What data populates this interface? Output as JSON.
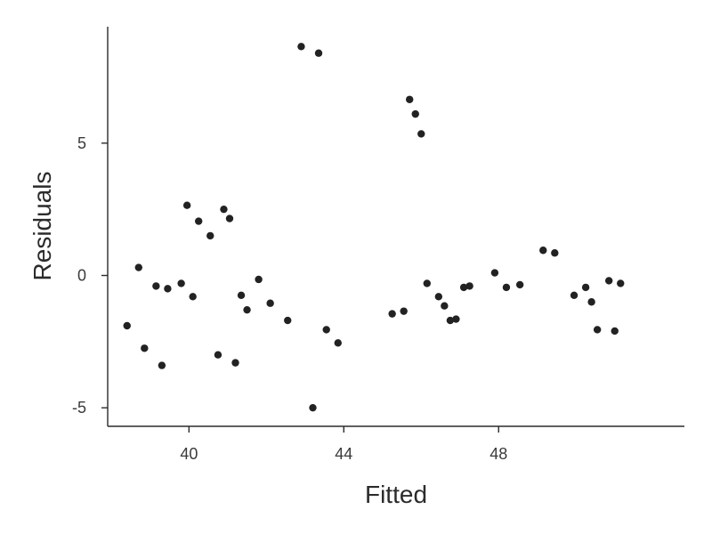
{
  "chart_data": {
    "type": "scatter",
    "title": "",
    "xlabel": "Fitted",
    "ylabel": "Residuals",
    "xlim": [
      37.9,
      52.8
    ],
    "ylim": [
      -5.7,
      9.4
    ],
    "x_ticks": [
      40,
      44,
      48
    ],
    "y_ticks": [
      5,
      0,
      -5
    ],
    "x_tick_labels": [
      "40",
      "44",
      "48"
    ],
    "y_tick_labels": [
      "5",
      "0",
      "-5"
    ],
    "grid": false,
    "legend": "none",
    "point_color": "#222222",
    "points": [
      {
        "x": 38.4,
        "y": -1.9
      },
      {
        "x": 38.7,
        "y": 0.3
      },
      {
        "x": 38.85,
        "y": -2.75
      },
      {
        "x": 39.15,
        "y": -0.4
      },
      {
        "x": 39.3,
        "y": -3.4
      },
      {
        "x": 39.45,
        "y": -0.5
      },
      {
        "x": 39.8,
        "y": -0.3
      },
      {
        "x": 39.95,
        "y": 2.65
      },
      {
        "x": 40.1,
        "y": -0.8
      },
      {
        "x": 40.25,
        "y": 2.05
      },
      {
        "x": 40.55,
        "y": 1.5
      },
      {
        "x": 40.75,
        "y": -3.0
      },
      {
        "x": 40.9,
        "y": 2.5
      },
      {
        "x": 41.05,
        "y": 2.15
      },
      {
        "x": 41.2,
        "y": -3.3
      },
      {
        "x": 41.35,
        "y": -0.75
      },
      {
        "x": 41.5,
        "y": -1.3
      },
      {
        "x": 41.8,
        "y": -0.15
      },
      {
        "x": 42.1,
        "y": -1.05
      },
      {
        "x": 42.55,
        "y": -1.7
      },
      {
        "x": 42.9,
        "y": 8.65
      },
      {
        "x": 43.2,
        "y": -5.0
      },
      {
        "x": 43.35,
        "y": 8.4
      },
      {
        "x": 43.55,
        "y": -2.05
      },
      {
        "x": 43.85,
        "y": -2.55
      },
      {
        "x": 45.25,
        "y": -1.45
      },
      {
        "x": 45.55,
        "y": -1.35
      },
      {
        "x": 45.7,
        "y": 6.65
      },
      {
        "x": 45.85,
        "y": 6.1
      },
      {
        "x": 46.0,
        "y": 5.35
      },
      {
        "x": 46.15,
        "y": -0.3
      },
      {
        "x": 46.45,
        "y": -0.8
      },
      {
        "x": 46.6,
        "y": -1.15
      },
      {
        "x": 46.75,
        "y": -1.7
      },
      {
        "x": 46.9,
        "y": -1.65
      },
      {
        "x": 47.1,
        "y": -0.45
      },
      {
        "x": 47.25,
        "y": -0.4
      },
      {
        "x": 47.9,
        "y": 0.1
      },
      {
        "x": 48.2,
        "y": -0.45
      },
      {
        "x": 48.55,
        "y": -0.35
      },
      {
        "x": 49.15,
        "y": 0.95
      },
      {
        "x": 49.45,
        "y": 0.85
      },
      {
        "x": 49.95,
        "y": -0.75
      },
      {
        "x": 50.25,
        "y": -0.45
      },
      {
        "x": 50.4,
        "y": -1.0
      },
      {
        "x": 50.55,
        "y": -2.05
      },
      {
        "x": 50.85,
        "y": -0.2
      },
      {
        "x": 51.0,
        "y": -2.1
      },
      {
        "x": 51.15,
        "y": -0.3
      }
    ]
  }
}
